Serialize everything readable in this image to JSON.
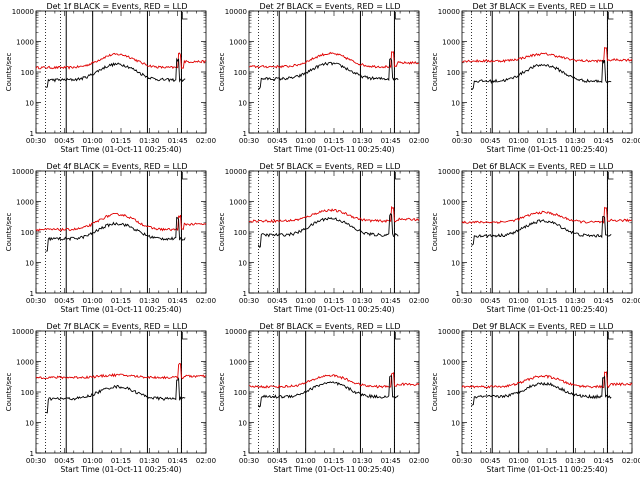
{
  "figure": {
    "background": "#ffffff",
    "events_color": "#000000",
    "lld_color": "#e00000"
  },
  "chart_data": [
    {
      "type": "line",
      "title": "Det 1f BLACK = Events, RED = LLD",
      "xlabel": "Start Time (01-Oct-11 00:25:40)",
      "ylabel": "Counts/sec",
      "yscale": "log",
      "ylim": [
        1,
        10000
      ],
      "xticks": [
        "00:30",
        "00:45",
        "01:00",
        "01:15",
        "01:30",
        "01:45",
        "02:00"
      ],
      "yticks": [
        "1",
        "10",
        "100",
        "1000",
        "10000"
      ],
      "dotted_lines": [
        "00:35",
        "00:43",
        "01:47"
      ],
      "solid_lines": [
        "00:46",
        "01:00",
        "01:29",
        "01:47"
      ],
      "events": {
        "base": 55,
        "peak": 180,
        "start": "00:35",
        "end": "01:49",
        "step_low": 32
      },
      "lld": {
        "base": 140,
        "peak": 380,
        "start": "00:30",
        "end": "02:00",
        "end_level": 220
      }
    },
    {
      "type": "line",
      "title": "Det 2f BLACK = Events, RED = LLD",
      "xlabel": "Start Time (01-Oct-11 00:25:40)",
      "ylabel": "Counts/sec",
      "yscale": "log",
      "ylim": [
        1,
        10000
      ],
      "xticks": [
        "00:30",
        "00:45",
        "01:00",
        "01:15",
        "01:30",
        "01:45",
        "02:00"
      ],
      "yticks": [
        "1",
        "10",
        "100",
        "1000",
        "10000"
      ],
      "dotted_lines": [
        "00:35",
        "00:43",
        "01:47"
      ],
      "solid_lines": [
        "00:46",
        "01:00",
        "01:29",
        "01:47"
      ],
      "events": {
        "base": 60,
        "peak": 190,
        "start": "00:35",
        "end": "01:49",
        "step_low": 30
      },
      "lld": {
        "base": 150,
        "peak": 400,
        "start": "00:30",
        "end": "02:00",
        "end_level": 200
      }
    },
    {
      "type": "line",
      "title": "Det 3f BLACK = Events, RED = LLD",
      "xlabel": "Start Time (01-Oct-11 00:25:40)",
      "ylabel": "Counts/sec",
      "yscale": "log",
      "ylim": [
        1,
        10000
      ],
      "xticks": [
        "00:30",
        "00:45",
        "01:00",
        "01:15",
        "01:30",
        "01:45",
        "02:00"
      ],
      "yticks": [
        "1",
        "10",
        "100",
        "1000",
        "10000"
      ],
      "dotted_lines": [
        "00:35",
        "00:43",
        "01:47"
      ],
      "solid_lines": [
        "00:46",
        "01:00",
        "01:29",
        "01:47"
      ],
      "events": {
        "base": 50,
        "peak": 170,
        "start": "00:35",
        "end": "01:49",
        "step_low": 30
      },
      "lld": {
        "base": 230,
        "peak": 390,
        "start": "00:30",
        "end": "02:00",
        "end_level": 250
      }
    },
    {
      "type": "line",
      "title": "Det 4f BLACK = Events, RED = LLD",
      "xlabel": "Start Time (01-Oct-11 00:25:40)",
      "ylabel": "Counts/sec",
      "yscale": "log",
      "ylim": [
        1,
        10000
      ],
      "xticks": [
        "00:30",
        "00:45",
        "01:00",
        "01:15",
        "01:30",
        "01:45",
        "02:00"
      ],
      "yticks": [
        "1",
        "10",
        "100",
        "1000",
        "10000"
      ],
      "dotted_lines": [
        "00:35",
        "00:43",
        "01:47"
      ],
      "solid_lines": [
        "00:46",
        "01:00",
        "01:29",
        "01:47"
      ],
      "events": {
        "base": 60,
        "peak": 190,
        "start": "00:35",
        "end": "01:49",
        "step_low": 22
      },
      "lld": {
        "base": 120,
        "peak": 380,
        "start": "00:30",
        "end": "02:00",
        "end_level": 180
      }
    },
    {
      "type": "line",
      "title": "Det 5f BLACK = Events, RED = LLD",
      "xlabel": "Start Time (01-Oct-11 00:25:40)",
      "ylabel": "Counts/sec",
      "yscale": "log",
      "ylim": [
        1,
        10000
      ],
      "xticks": [
        "00:30",
        "00:45",
        "01:00",
        "01:15",
        "01:30",
        "01:45",
        "02:00"
      ],
      "yticks": [
        "1",
        "10",
        "100",
        "1000",
        "10000"
      ],
      "dotted_lines": [
        "00:35",
        "00:43",
        "01:47"
      ],
      "solid_lines": [
        "00:46",
        "01:00",
        "01:29",
        "01:47"
      ],
      "events": {
        "base": 80,
        "peak": 280,
        "start": "00:35",
        "end": "01:49",
        "step_low": 35
      },
      "lld": {
        "base": 230,
        "peak": 520,
        "start": "00:30",
        "end": "02:00",
        "end_level": 260
      }
    },
    {
      "type": "line",
      "title": "Det 6f BLACK = Events, RED = LLD",
      "xlabel": "Start Time (01-Oct-11 00:25:40)",
      "ylabel": "Counts/sec",
      "yscale": "log",
      "ylim": [
        1,
        10000
      ],
      "xticks": [
        "00:30",
        "00:45",
        "01:00",
        "01:15",
        "01:30",
        "01:45",
        "02:00"
      ],
      "yticks": [
        "1",
        "10",
        "100",
        "1000",
        "10000"
      ],
      "dotted_lines": [
        "00:35",
        "00:43",
        "01:47"
      ],
      "solid_lines": [
        "00:46",
        "01:00",
        "01:29",
        "01:47"
      ],
      "events": {
        "base": 75,
        "peak": 230,
        "start": "00:35",
        "end": "01:49",
        "step_low": 40
      },
      "lld": {
        "base": 210,
        "peak": 440,
        "start": "00:30",
        "end": "02:00",
        "end_level": 240
      }
    },
    {
      "type": "line",
      "title": "Det 7f BLACK = Events, RED = LLD",
      "xlabel": "Start Time (01-Oct-11 00:25:40)",
      "ylabel": "Counts/sec",
      "yscale": "log",
      "ylim": [
        1,
        10000
      ],
      "xticks": [
        "00:30",
        "00:45",
        "01:00",
        "01:15",
        "01:30",
        "01:45",
        "02:00"
      ],
      "yticks": [
        "1",
        "10",
        "100",
        "1000",
        "10000"
      ],
      "dotted_lines": [
        "00:35",
        "00:43",
        "01:47"
      ],
      "solid_lines": [
        "00:46",
        "01:00",
        "01:29",
        "01:47"
      ],
      "events": {
        "base": 60,
        "peak": 150,
        "start": "00:35",
        "end": "01:49",
        "step_low": 20
      },
      "lld": {
        "base": 300,
        "peak": 360,
        "start": "00:30",
        "end": "02:00",
        "end_level": 330
      }
    },
    {
      "type": "line",
      "title": "Det 8f BLACK = Events, RED = LLD",
      "xlabel": "Start Time (01-Oct-11 00:25:40)",
      "ylabel": "Counts/sec",
      "yscale": "log",
      "ylim": [
        1,
        10000
      ],
      "xticks": [
        "00:30",
        "00:45",
        "01:00",
        "01:15",
        "01:30",
        "01:45",
        "02:00"
      ],
      "yticks": [
        "1",
        "10",
        "100",
        "1000",
        "10000"
      ],
      "dotted_lines": [
        "00:35",
        "00:43",
        "01:47"
      ],
      "solid_lines": [
        "00:46",
        "01:00",
        "01:29",
        "01:47"
      ],
      "events": {
        "base": 70,
        "peak": 200,
        "start": "00:35",
        "end": "01:49",
        "step_low": 35
      },
      "lld": {
        "base": 150,
        "peak": 350,
        "start": "00:30",
        "end": "02:00",
        "end_level": 180
      }
    },
    {
      "type": "line",
      "title": "Det 9f BLACK = Events, RED = LLD",
      "xlabel": "Start Time (01-Oct-11 00:25:40)",
      "ylabel": "Counts/sec",
      "yscale": "log",
      "ylim": [
        1,
        10000
      ],
      "xticks": [
        "00:30",
        "00:45",
        "01:00",
        "01:15",
        "01:30",
        "01:45",
        "02:00"
      ],
      "yticks": [
        "1",
        "10",
        "100",
        "1000",
        "10000"
      ],
      "dotted_lines": [
        "00:35",
        "00:43",
        "01:47"
      ],
      "solid_lines": [
        "00:46",
        "01:00",
        "01:29",
        "01:47"
      ],
      "events": {
        "base": 70,
        "peak": 190,
        "start": "00:35",
        "end": "01:49",
        "step_low": 35
      },
      "lld": {
        "base": 150,
        "peak": 330,
        "start": "00:30",
        "end": "02:00",
        "end_level": 180
      }
    }
  ]
}
